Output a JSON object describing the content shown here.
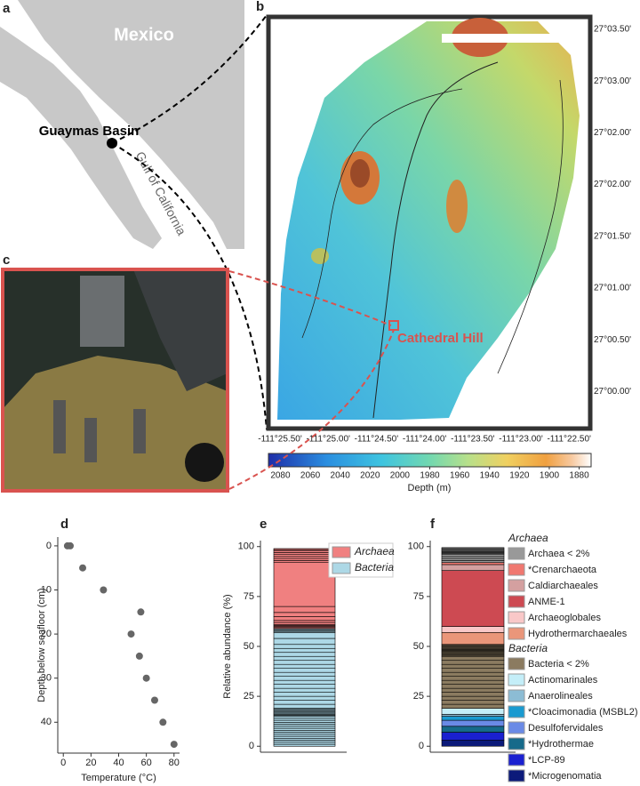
{
  "panel_labels": [
    "a",
    "b",
    "c",
    "d",
    "e",
    "f"
  ],
  "map": {
    "country": "Mexico",
    "basin": "Guaymas Basin",
    "gulf": "Gulf of California",
    "site": "Cathedral Hill",
    "lat_labels": [
      "27°03.50'",
      "27°03.00'",
      "27°02.00'",
      "27°02.00'",
      "27°01.50'",
      "27°01.00'",
      "27°00.50'",
      "27°00.00'"
    ],
    "lon_labels": [
      "-111°25.50'",
      "-111°25.00'",
      "-111°24.50'",
      "-111°24.00'",
      "-111°23.50'",
      "-111°23.00'",
      "-111°22.50'"
    ],
    "colorbar": {
      "label": "Depth (m)",
      "lim": [
        2088,
        1872
      ],
      "ticks": [
        2080,
        2060,
        2040,
        2020,
        2000,
        1980,
        1960,
        1940,
        1920,
        1900,
        1880
      ]
    }
  },
  "chart_data": [
    {
      "type": "scatter",
      "xlabel": "Temperature (°C)",
      "ylabel": "Depth below seafloor (cm)",
      "color": "#666666",
      "x": [
        3,
        5,
        14,
        29,
        56,
        49,
        55,
        60,
        66,
        72,
        80
      ],
      "y": [
        0,
        0,
        5,
        10,
        15,
        20,
        25,
        30,
        35,
        40,
        45
      ],
      "xlim": [
        -4,
        84
      ],
      "ylim": [
        47,
        -2
      ],
      "xticks": [
        0,
        20,
        40,
        60,
        80
      ],
      "yticks": [
        0,
        10,
        20,
        30,
        40
      ]
    },
    {
      "type": "stacked-bar",
      "ylabel": "Relative abundance (%)",
      "ylim": [
        -3,
        103
      ],
      "yticks": [
        0,
        25,
        50,
        75,
        100
      ],
      "series": [
        {
          "name": "Archaea",
          "color": "#f08080",
          "values": [
            0.5,
            0.5,
            0.5,
            0.5,
            1,
            1,
            2,
            2,
            3,
            22,
            1,
            1,
            1,
            1,
            1,
            1,
            0.5,
            0.5
          ]
        },
        {
          "name": "Bacteria",
          "color": "#add8e6",
          "values": [
            1,
            1,
            1,
            1,
            1,
            1,
            1,
            1,
            1,
            1,
            1,
            1,
            1,
            1,
            1,
            0.5,
            0.5,
            0.5,
            0.5,
            0.5,
            0.5,
            0.5,
            0.5,
            2,
            2,
            2,
            2,
            2,
            2,
            2,
            2,
            2,
            2,
            2,
            2,
            2,
            2,
            2,
            2,
            3,
            3,
            0.5,
            0.5,
            0.5,
            0.5
          ]
        }
      ]
    },
    {
      "type": "stacked-bar",
      "ylim": [
        -3,
        103
      ],
      "yticks": [
        0,
        25,
        50,
        75,
        100
      ],
      "groups": [
        {
          "name": "Archaea",
          "series": [
            {
              "name": "Archaea < 2%",
              "color": "#999999",
              "values": [
                1,
                1,
                1,
                1,
                0.5,
                0.5,
                0.5,
                0.5,
                0.5,
                0.5,
                0.5
              ]
            },
            {
              "name": "*Crenarchaeota",
              "color": "#f07870",
              "values": [
                1
              ]
            },
            {
              "name": "Caldiarchaeales",
              "color": "#d4a0a0",
              "values": [
                3
              ]
            },
            {
              "name": "ANME-1",
              "color": "#cd4a52",
              "values": [
                28
              ]
            },
            {
              "name": "Archaeoglobales",
              "color": "#f9c8c8",
              "values": [
                3
              ]
            },
            {
              "name": "Hydrothermarchaeales",
              "color": "#ea967a",
              "values": [
                6
              ]
            }
          ]
        },
        {
          "name": "Bacteria",
          "series": [
            {
              "name": "Bacteria < 2%",
              "color": "#8b7b60",
              "values": [
                2,
                2,
                2,
                2,
                2,
                2,
                2,
                2,
                2,
                2,
                2,
                2,
                2,
                0.5,
                0.5,
                0.5,
                0.5,
                0.5,
                0.5,
                0.5,
                0.5,
                0.5,
                0.5,
                0.5,
                0.5
              ]
            },
            {
              "name": "Actinomarinales",
              "color": "#c4eef8",
              "values": [
                3
              ]
            },
            {
              "name": "Anaerolineales",
              "color": "#8cbcd4",
              "values": [
                1
              ]
            },
            {
              "name": "*Cloacimonadia (MSBL2)",
              "color": "#1a9ad0",
              "values": [
                2
              ]
            },
            {
              "name": "Desulfofervidales",
              "color": "#6a8ae6",
              "values": [
                3
              ]
            },
            {
              "name": "*Hydrothermae",
              "color": "#166a8a",
              "values": [
                3
              ]
            },
            {
              "name": "*LCP-89",
              "color": "#1a20d0",
              "values": [
                4
              ]
            },
            {
              "name": "*Microgenomatia",
              "color": "#0c1a7a",
              "values": [
                3
              ]
            }
          ]
        }
      ]
    }
  ]
}
